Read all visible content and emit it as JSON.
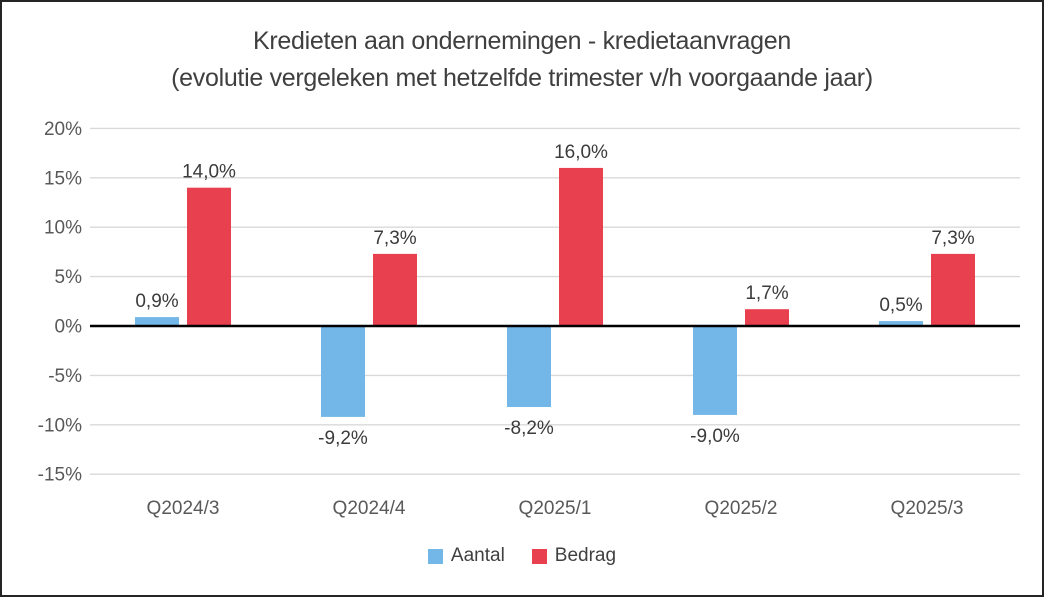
{
  "chart_data": {
    "type": "bar",
    "title": "Kredieten aan ondernemingen - kredietaanvragen",
    "subtitle": "(evolutie vergeleken met hetzelfde trimester v/h voorgaande jaar)",
    "categories": [
      "Q2024/3",
      "Q2024/4",
      "Q2025/1",
      "Q2025/2",
      "Q2025/3"
    ],
    "series": [
      {
        "name": "Aantal",
        "color": "#72B7E7",
        "values": [
          0.9,
          -9.2,
          -8.2,
          -9.0,
          0.5
        ],
        "data_labels": [
          "0,9%",
          "-9,2%",
          "-8,2%",
          "-9,0%",
          "0,5%"
        ]
      },
      {
        "name": "Bedrag",
        "color": "#E8404E",
        "values": [
          14.0,
          7.3,
          16.0,
          1.7,
          7.3
        ],
        "data_labels": [
          "14,0%",
          "7,3%",
          "16,0%",
          "1,7%",
          "7,3%"
        ]
      }
    ],
    "ylim": [
      -15,
      20
    ],
    "ytick_step": 5,
    "ytick_labels": [
      "20%",
      "15%",
      "10%",
      "5%",
      "0%",
      "-5%",
      "-10%",
      "-15%"
    ],
    "grid": true,
    "legend_position": "bottom",
    "colors": {
      "gridline": "#D9D9D9",
      "zero_line": "#000000",
      "axis_labels": "#595959",
      "data_labels": "#3B3B3B",
      "title": "#3F3F3F",
      "legend_text": "#404040",
      "frame_border": "#242424",
      "background": "#FFFFFF"
    }
  }
}
